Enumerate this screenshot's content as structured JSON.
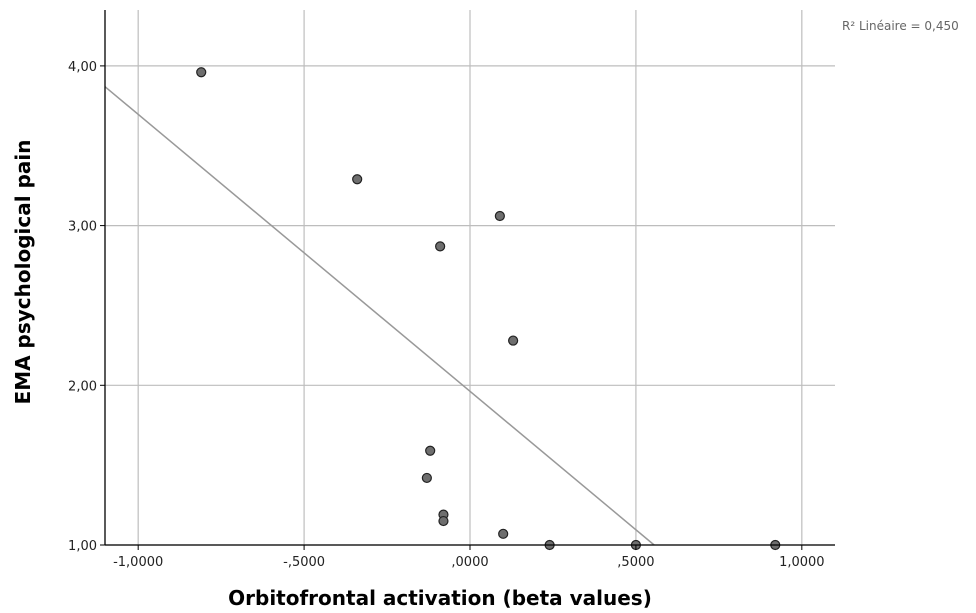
{
  "chart_data": {
    "type": "scatter",
    "xlabel": "Orbitofrontal activation (beta values)",
    "ylabel": "EMA psychological pain",
    "xlim": [
      -1.1,
      1.1
    ],
    "ylim": [
      1.0,
      4.35
    ],
    "x_ticks": [
      -1.0,
      -0.5,
      0.0,
      0.5,
      1.0
    ],
    "x_tick_labels": [
      "-1,0000",
      "-,5000",
      ",0000",
      ",5000",
      "1,0000"
    ],
    "y_ticks": [
      1.0,
      2.0,
      3.0,
      4.0
    ],
    "y_tick_labels": [
      "1,00",
      "2,00",
      "3,00",
      "4,00"
    ],
    "grid": true,
    "points": [
      {
        "x": -0.81,
        "y": 3.96
      },
      {
        "x": -0.34,
        "y": 3.29
      },
      {
        "x": -0.09,
        "y": 2.87
      },
      {
        "x": 0.09,
        "y": 3.06
      },
      {
        "x": 0.13,
        "y": 2.28
      },
      {
        "x": -0.12,
        "y": 1.59
      },
      {
        "x": -0.13,
        "y": 1.42
      },
      {
        "x": -0.08,
        "y": 1.19
      },
      {
        "x": -0.08,
        "y": 1.15
      },
      {
        "x": 0.1,
        "y": 1.07
      },
      {
        "x": 0.24,
        "y": 1.0
      },
      {
        "x": 0.5,
        "y": 1.0
      },
      {
        "x": 0.92,
        "y": 1.0
      }
    ],
    "fit_line": {
      "x": [
        -1.1,
        0.555
      ],
      "y": [
        3.87,
        1.0
      ]
    },
    "annotation": "R² Linéaire = 0,450",
    "colors": {
      "points": "#6e6e6e",
      "point_stroke": "#222222",
      "fit_line": "#999999",
      "grid": "#bdbdbd",
      "axis": "#000000"
    }
  }
}
